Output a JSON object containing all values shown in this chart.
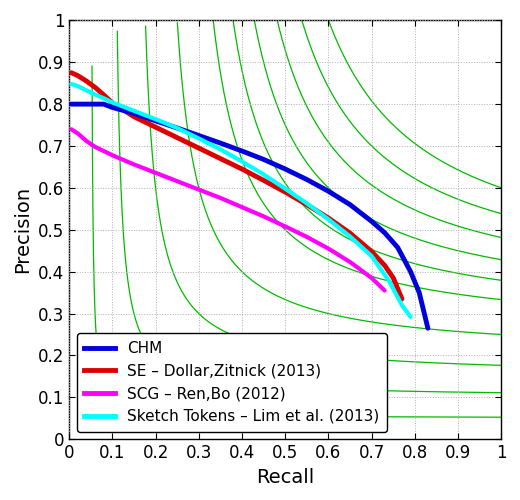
{
  "title": "",
  "xlabel": "Recall",
  "ylabel": "Precision",
  "xlim": [
    0,
    1
  ],
  "ylim": [
    0,
    1
  ],
  "xticks": [
    0,
    0.1,
    0.2,
    0.3,
    0.4,
    0.5,
    0.6,
    0.7,
    0.8,
    0.9,
    1
  ],
  "yticks": [
    0,
    0.1,
    0.2,
    0.3,
    0.4,
    0.5,
    0.6,
    0.7,
    0.8,
    0.9,
    1
  ],
  "background_color": "#ffffff",
  "grid_color": "#b0b0b0",
  "fmeasure_color": "#00bb00",
  "fmeasure_levels": [
    0.1,
    0.2,
    0.3,
    0.4,
    0.5,
    0.55,
    0.6,
    0.65,
    0.7,
    0.75
  ],
  "legend_loc": "lower left",
  "curves": {
    "CHM": {
      "color": "#0000dd",
      "linewidth": 3.5,
      "zorder": 6,
      "recall": [
        0.005,
        0.02,
        0.05,
        0.08,
        0.1,
        0.15,
        0.2,
        0.25,
        0.3,
        0.35,
        0.4,
        0.45,
        0.5,
        0.55,
        0.6,
        0.65,
        0.7,
        0.73,
        0.76,
        0.79,
        0.81,
        0.83
      ],
      "precision": [
        0.8,
        0.8,
        0.8,
        0.8,
        0.792,
        0.778,
        0.76,
        0.743,
        0.725,
        0.707,
        0.688,
        0.668,
        0.645,
        0.62,
        0.592,
        0.56,
        0.52,
        0.493,
        0.458,
        0.4,
        0.35,
        0.265
      ]
    },
    "SE": {
      "color": "#dd0000",
      "linewidth": 3.5,
      "zorder": 5,
      "recall": [
        0.005,
        0.02,
        0.04,
        0.06,
        0.08,
        0.1,
        0.15,
        0.2,
        0.25,
        0.3,
        0.35,
        0.4,
        0.45,
        0.5,
        0.55,
        0.6,
        0.65,
        0.7,
        0.73,
        0.75,
        0.77
      ],
      "precision": [
        0.875,
        0.868,
        0.855,
        0.84,
        0.822,
        0.803,
        0.77,
        0.745,
        0.72,
        0.695,
        0.67,
        0.645,
        0.618,
        0.59,
        0.56,
        0.528,
        0.492,
        0.448,
        0.415,
        0.385,
        0.335
      ]
    },
    "SCG": {
      "color": "#ff00ff",
      "linewidth": 3.0,
      "zorder": 4,
      "recall": [
        0.005,
        0.02,
        0.04,
        0.06,
        0.08,
        0.1,
        0.15,
        0.2,
        0.25,
        0.3,
        0.35,
        0.4,
        0.45,
        0.5,
        0.55,
        0.6,
        0.65,
        0.7,
        0.73
      ],
      "precision": [
        0.74,
        0.73,
        0.712,
        0.698,
        0.688,
        0.678,
        0.656,
        0.636,
        0.616,
        0.596,
        0.576,
        0.554,
        0.532,
        0.508,
        0.483,
        0.455,
        0.423,
        0.385,
        0.355
      ]
    },
    "SketchTokens": {
      "color": "#00ffff",
      "linewidth": 3.0,
      "zorder": 7,
      "recall": [
        0.005,
        0.02,
        0.04,
        0.06,
        0.08,
        0.1,
        0.15,
        0.2,
        0.25,
        0.3,
        0.35,
        0.4,
        0.45,
        0.5,
        0.55,
        0.6,
        0.65,
        0.7,
        0.74,
        0.77,
        0.79
      ],
      "precision": [
        0.848,
        0.843,
        0.833,
        0.823,
        0.814,
        0.804,
        0.784,
        0.764,
        0.743,
        0.718,
        0.692,
        0.663,
        0.632,
        0.598,
        0.563,
        0.525,
        0.484,
        0.437,
        0.378,
        0.32,
        0.292
      ]
    }
  },
  "legend": [
    {
      "label": "CHM",
      "color": "#0000dd"
    },
    {
      "label": "SE – Dollar,Zitnick (2013)",
      "color": "#dd0000"
    },
    {
      "label": "SCG – Ren,Bo (2012)",
      "color": "#ff00ff"
    },
    {
      "label": "Sketch Tokens – Lim et al. (2013)",
      "color": "#00ffff"
    }
  ],
  "tick_fontsize": 12,
  "label_fontsize": 14,
  "legend_fontsize": 11
}
